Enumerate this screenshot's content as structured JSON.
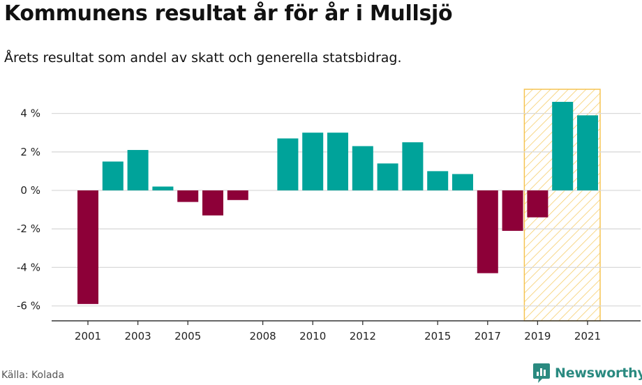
{
  "title": "Kommunens resultat år för år i Mullsjö",
  "subtitle": "Årets resultat som andel av skatt och generella statsbidrag.",
  "source": "Källa: Kolada",
  "logo": {
    "text": "Newsworthy",
    "icon": "newsworthy-chart-bubble-icon",
    "color": "#2a8a80"
  },
  "colors": {
    "positive": "#00a39a",
    "negative": "#8d0038",
    "highlight": "#f5c451",
    "grid": "#d9d9d9",
    "axis": "#333333"
  },
  "chart_data": {
    "type": "bar",
    "title": "Kommunens resultat år för år i Mullsjö",
    "subtitle": "Årets resultat som andel av skatt och generella statsbidrag.",
    "x": [
      2001,
      2002,
      2003,
      2004,
      2005,
      2006,
      2007,
      2008,
      2009,
      2010,
      2011,
      2012,
      2013,
      2014,
      2015,
      2016,
      2017,
      2018,
      2019,
      2020,
      2021
    ],
    "values": [
      -5.9,
      1.5,
      2.1,
      0.2,
      -0.6,
      -1.3,
      -0.5,
      0.0,
      2.7,
      3.0,
      3.0,
      2.3,
      1.4,
      2.5,
      1.0,
      0.85,
      -4.3,
      -2.1,
      -1.4,
      4.6,
      3.9
    ],
    "xticks": [
      "2001",
      "2003",
      "2005",
      "2008",
      "2010",
      "2012",
      "2015",
      "2017",
      "2019",
      "2021"
    ],
    "yticks": [
      4,
      2,
      0,
      -2,
      -4,
      -6
    ],
    "ytick_labels": [
      "4 %",
      "2 %",
      "0 %",
      "-2 %",
      "-4 %",
      "-6 %"
    ],
    "ylim": [
      -6.5,
      5.2
    ],
    "highlight_range": [
      2019,
      2021
    ],
    "grid": true,
    "xlabel": "",
    "ylabel": ""
  }
}
